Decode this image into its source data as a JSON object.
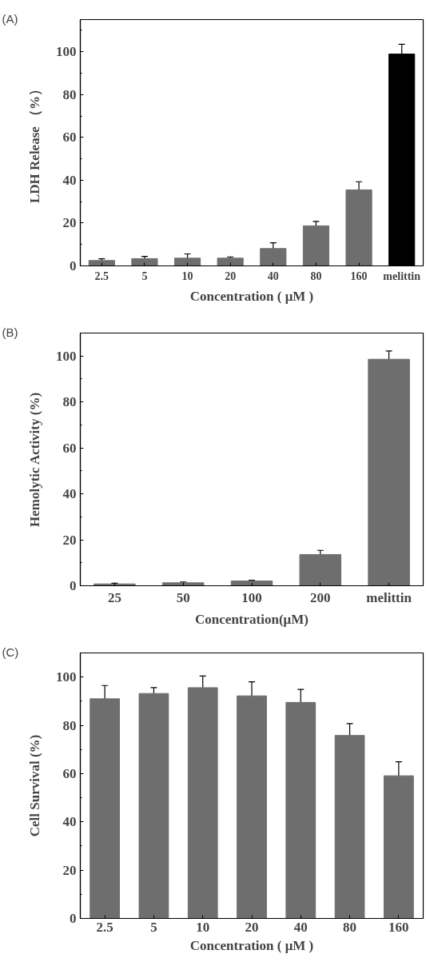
{
  "chart_data": [
    {
      "type": "bar",
      "title": "(A)",
      "xlabel": "Concentration ( μM )",
      "ylabel": "LDH Release （%）",
      "categories": [
        "2.5",
        "5",
        "10",
        "20",
        "40",
        "80",
        "160",
        "melittin"
      ],
      "values": [
        2.5,
        3.4,
        3.6,
        3.6,
        8.1,
        18.7,
        35.5,
        98.9
      ],
      "errors": [
        0.8,
        1.0,
        2.0,
        0.6,
        2.7,
        2.1,
        3.8,
        4.6
      ],
      "colors": [
        "#6e6e6e",
        "#6e6e6e",
        "#6e6e6e",
        "#6e6e6e",
        "#6e6e6e",
        "#6e6e6e",
        "#6e6e6e",
        "#000000"
      ],
      "ylim": [
        0,
        115
      ],
      "yticks": [
        0,
        20,
        40,
        60,
        80,
        100
      ],
      "grid": false,
      "legend": false
    },
    {
      "type": "bar",
      "title": "(B)",
      "xlabel": "Concentration(μM)",
      "ylabel": "Hemolytic Activity (%)",
      "categories": [
        "25",
        "50",
        "100",
        "200",
        "melittin"
      ],
      "values": [
        0.8,
        1.3,
        2.1,
        13.6,
        98.6
      ],
      "errors": [
        0.3,
        0.3,
        0.3,
        1.8,
        3.6
      ],
      "colors": [
        "#6e6e6e",
        "#6e6e6e",
        "#6e6e6e",
        "#6e6e6e",
        "#6e6e6e"
      ],
      "ylim": [
        0,
        110
      ],
      "yticks": [
        0,
        20,
        40,
        60,
        80,
        100
      ],
      "grid": false,
      "legend": false
    },
    {
      "type": "bar",
      "title": "(C)",
      "xlabel": "Concentration ( μM )",
      "ylabel": "Cell Survival (%)",
      "categories": [
        "2.5",
        "5",
        "10",
        "20",
        "40",
        "80",
        "160"
      ],
      "values": [
        91.0,
        93.2,
        95.6,
        92.2,
        89.5,
        75.8,
        59.1
      ],
      "errors": [
        5.5,
        2.4,
        4.8,
        5.8,
        5.4,
        4.9,
        5.8
      ],
      "colors": [
        "#6e6e6e",
        "#6e6e6e",
        "#6e6e6e",
        "#6e6e6e",
        "#6e6e6e",
        "#6e6e6e",
        "#6e6e6e"
      ],
      "ylim": [
        0,
        110
      ],
      "yticks": [
        0,
        20,
        40,
        60,
        80,
        100
      ],
      "grid": false,
      "legend": false
    }
  ]
}
